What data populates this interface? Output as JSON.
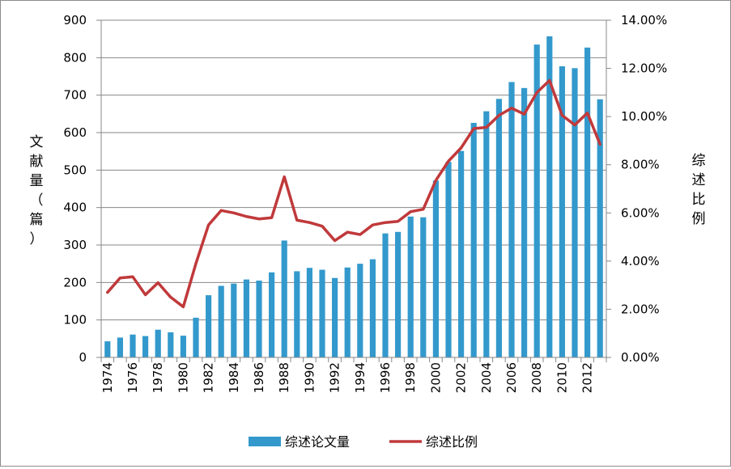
{
  "chart_data": {
    "type": "bar",
    "categories": [
      "1974",
      "1975",
      "1976",
      "1977",
      "1978",
      "1979",
      "1980",
      "1981",
      "1982",
      "1983",
      "1984",
      "1985",
      "1986",
      "1987",
      "1988",
      "1989",
      "1990",
      "1991",
      "1992",
      "1993",
      "1994",
      "1995",
      "1996",
      "1997",
      "1998",
      "1999",
      "2000",
      "2001",
      "2002",
      "2003",
      "2004",
      "2005",
      "2006",
      "2007",
      "2008",
      "2009",
      "2010",
      "2011",
      "2012",
      "2013"
    ],
    "x_tick_labels": [
      "1974",
      "1976",
      "1978",
      "1980",
      "1982",
      "1984",
      "1986",
      "1988",
      "1990",
      "1992",
      "1994",
      "1996",
      "1998",
      "2000",
      "2002",
      "2004",
      "2006",
      "2008",
      "2010",
      "2012"
    ],
    "series": [
      {
        "name": "综述论文量",
        "type": "bar",
        "axis": "left",
        "color": "#3399CC",
        "values": [
          43,
          53,
          61,
          57,
          74,
          67,
          58,
          106,
          166,
          191,
          197,
          208,
          205,
          227,
          312,
          230,
          239,
          234,
          212,
          240,
          250,
          262,
          331,
          335,
          376,
          374,
          472,
          522,
          551,
          626,
          657,
          690,
          735,
          719,
          835,
          857,
          777,
          772,
          827,
          689
        ]
      },
      {
        "name": "综述比例",
        "type": "line",
        "axis": "right",
        "color": "#C0393B",
        "values": [
          2.7,
          3.3,
          3.35,
          2.6,
          3.1,
          2.5,
          2.1,
          3.9,
          5.5,
          6.1,
          6.0,
          5.85,
          5.75,
          5.8,
          7.5,
          5.7,
          5.6,
          5.45,
          4.85,
          5.2,
          5.1,
          5.5,
          5.6,
          5.65,
          6.05,
          6.15,
          7.35,
          8.15,
          8.7,
          9.5,
          9.55,
          10.05,
          10.35,
          10.1,
          11.0,
          11.5,
          10.05,
          9.65,
          10.15,
          8.85
        ]
      }
    ],
    "ylabel": "文献量（篇）",
    "y2label": "综述比例",
    "ylim": [
      0,
      900
    ],
    "y_ticks": [
      "0",
      "100",
      "200",
      "300",
      "400",
      "500",
      "600",
      "700",
      "800",
      "900"
    ],
    "y2lim": [
      0,
      14
    ],
    "y2_ticks": [
      "0.00%",
      "2.00%",
      "4.00%",
      "6.00%",
      "8.00%",
      "10.00%",
      "12.00%",
      "14.00%"
    ],
    "grid": "horizontal",
    "legend_position": "bottom"
  }
}
